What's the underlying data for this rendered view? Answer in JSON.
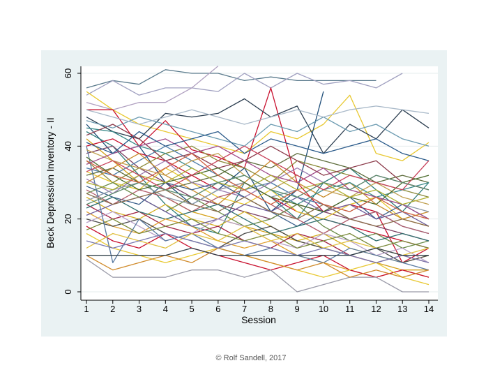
{
  "chart_data": {
    "type": "line",
    "xlabel": "Session",
    "ylabel": "Beck Depression Inventory - II",
    "xlim": [
      1,
      14
    ],
    "ylim": [
      0,
      60
    ],
    "x_ticks": [
      1,
      2,
      3,
      4,
      5,
      6,
      7,
      8,
      9,
      10,
      11,
      12,
      13,
      14
    ],
    "y_ticks": [
      0,
      20,
      40,
      60
    ],
    "grid": "horizontal",
    "legend": "none",
    "series": [
      {
        "color": "#5a7a8c",
        "values": [
          56,
          58,
          57,
          61,
          60,
          60,
          58,
          59,
          58,
          58,
          58,
          58,
          null,
          null
        ]
      },
      {
        "color": "#a0a0c0",
        "values": [
          54,
          58,
          54,
          56,
          56,
          55,
          60,
          56,
          60,
          57,
          58,
          56,
          60,
          null
        ]
      },
      {
        "color": "#b0a0c0",
        "values": [
          52,
          50,
          52,
          52,
          56,
          62,
          null,
          null,
          null,
          null,
          null,
          null,
          null,
          null
        ]
      },
      {
        "color": "#e8c830",
        "values": [
          55,
          50,
          46,
          44,
          42,
          40,
          38,
          44,
          42,
          46,
          54,
          38,
          36,
          41
        ]
      },
      {
        "color": "#c8102e",
        "values": [
          50,
          50,
          40,
          47,
          39,
          37,
          34,
          56,
          30,
          22,
          24,
          22,
          8,
          12
        ]
      },
      {
        "color": "#2c3e50",
        "values": [
          48,
          44,
          42,
          49,
          48,
          49,
          53,
          48,
          51,
          38,
          46,
          42,
          50,
          45
        ]
      },
      {
        "color": "#1f4e79",
        "values": [
          46,
          38,
          40,
          30,
          24,
          28,
          34,
          22,
          28,
          55,
          null,
          null,
          null,
          null
        ]
      },
      {
        "color": "#2e7d7a",
        "values": [
          44,
          40,
          32,
          24,
          18,
          16,
          30,
          26,
          20,
          30,
          34,
          28,
          22,
          30
        ]
      },
      {
        "color": "#d4a017",
        "values": [
          42,
          36,
          30,
          26,
          22,
          20,
          18,
          16,
          14,
          12,
          10,
          8,
          6,
          6
        ]
      },
      {
        "color": "#c8102e",
        "values": [
          40,
          42,
          38,
          36,
          32,
          28,
          30,
          26,
          22,
          20,
          18,
          16,
          14,
          12
        ]
      },
      {
        "color": "#7b3f61",
        "values": [
          38,
          40,
          34,
          30,
          26,
          24,
          22,
          20,
          24,
          22,
          20,
          18,
          16,
          14
        ]
      },
      {
        "color": "#8b8b3a",
        "values": [
          36,
          30,
          34,
          38,
          40,
          36,
          34,
          30,
          36,
          34,
          32,
          30,
          28,
          26
        ]
      },
      {
        "color": "#4a7aa8",
        "values": [
          34,
          32,
          36,
          40,
          36,
          32,
          28,
          30,
          26,
          24,
          20,
          22,
          18,
          16
        ]
      },
      {
        "color": "#e8c830",
        "values": [
          33,
          30,
          28,
          34,
          30,
          26,
          24,
          28,
          22,
          20,
          24,
          26,
          20,
          18
        ]
      },
      {
        "color": "#5c6b3a",
        "values": [
          32,
          34,
          30,
          28,
          30,
          32,
          36,
          34,
          38,
          36,
          34,
          30,
          32,
          30
        ]
      },
      {
        "color": "#9b7bb0",
        "values": [
          31,
          27,
          32,
          36,
          30,
          28,
          26,
          30,
          34,
          30,
          28,
          32,
          30,
          28
        ]
      },
      {
        "color": "#c98b2a",
        "values": [
          30,
          34,
          38,
          32,
          28,
          24,
          30,
          36,
          30,
          26,
          30,
          24,
          20,
          22
        ]
      },
      {
        "color": "#3a5f8c",
        "values": [
          29,
          26,
          24,
          30,
          28,
          30,
          26,
          22,
          18,
          22,
          26,
          20,
          24,
          20
        ]
      },
      {
        "color": "#b05a6a",
        "values": [
          28,
          24,
          28,
          26,
          22,
          26,
          28,
          24,
          20,
          16,
          20,
          22,
          18,
          16
        ]
      },
      {
        "color": "#6a8c4a",
        "values": [
          27,
          30,
          26,
          22,
          26,
          22,
          18,
          20,
          24,
          18,
          14,
          16,
          12,
          14
        ]
      },
      {
        "color": "#d4b020",
        "values": [
          26,
          22,
          20,
          24,
          20,
          18,
          22,
          18,
          14,
          16,
          12,
          10,
          8,
          10
        ]
      },
      {
        "color": "#8a9aa8",
        "values": [
          25,
          28,
          30,
          26,
          24,
          28,
          30,
          26,
          28,
          24,
          22,
          26,
          24,
          22
        ]
      },
      {
        "color": "#a02040",
        "values": [
          24,
          20,
          22,
          18,
          16,
          18,
          14,
          12,
          16,
          14,
          10,
          8,
          10,
          8
        ]
      },
      {
        "color": "#2e6e6e",
        "values": [
          23,
          26,
          22,
          20,
          22,
          24,
          20,
          16,
          18,
          20,
          18,
          14,
          16,
          14
        ]
      },
      {
        "color": "#e0a030",
        "values": [
          22,
          18,
          16,
          20,
          18,
          14,
          12,
          14,
          10,
          8,
          6,
          4,
          6,
          4
        ]
      },
      {
        "color": "#6a5a9a",
        "values": [
          21,
          24,
          26,
          22,
          18,
          20,
          24,
          22,
          26,
          22,
          24,
          20,
          22,
          18
        ]
      },
      {
        "color": "#4a4a4a",
        "values": [
          20,
          18,
          20,
          16,
          14,
          12,
          16,
          18,
          14,
          12,
          10,
          12,
          8,
          10
        ]
      },
      {
        "color": "#b8a0c8",
        "values": [
          19,
          22,
          18,
          14,
          16,
          20,
          18,
          14,
          12,
          16,
          14,
          10,
          12,
          8
        ]
      },
      {
        "color": "#c8102e",
        "values": [
          18,
          14,
          12,
          16,
          12,
          10,
          8,
          6,
          8,
          10,
          6,
          4,
          6,
          4
        ]
      },
      {
        "color": "#7a8a3a",
        "values": [
          17,
          20,
          16,
          18,
          20,
          16,
          14,
          16,
          12,
          14,
          16,
          12,
          14,
          12
        ]
      },
      {
        "color": "#e8c830",
        "values": [
          16,
          12,
          10,
          8,
          10,
          12,
          10,
          8,
          6,
          4,
          6,
          8,
          4,
          2
        ]
      },
      {
        "color": "#5a7aa0",
        "values": [
          40,
          8,
          20,
          14,
          16,
          12,
          10,
          12,
          10,
          8,
          12,
          10,
          8,
          6
        ]
      },
      {
        "color": "#9a9aa8",
        "values": [
          9,
          4,
          4,
          4,
          6,
          6,
          4,
          6,
          0,
          2,
          4,
          4,
          0,
          0
        ]
      },
      {
        "color": "#d08a2a",
        "values": [
          10,
          6,
          8,
          10,
          8,
          12,
          10,
          8,
          6,
          8,
          4,
          6,
          4,
          6
        ]
      },
      {
        "color": "#3a8a8a",
        "values": [
          45,
          44,
          40,
          38,
          34,
          30,
          32,
          28,
          24,
          28,
          30,
          26,
          28,
          30
        ]
      },
      {
        "color": "#8b3a4a",
        "values": [
          43,
          46,
          42,
          36,
          38,
          34,
          36,
          40,
          36,
          32,
          34,
          36,
          30,
          28
        ]
      },
      {
        "color": "#6a9ab0",
        "values": [
          47,
          45,
          48,
          46,
          44,
          42,
          40,
          46,
          44,
          48,
          44,
          46,
          42,
          40
        ]
      },
      {
        "color": "#c0a050",
        "values": [
          39,
          36,
          34,
          32,
          36,
          38,
          32,
          28,
          32,
          28,
          26,
          30,
          26,
          24
        ]
      },
      {
        "color": "#4a6a2a",
        "values": [
          37,
          32,
          28,
          30,
          32,
          34,
          30,
          26,
          24,
          22,
          26,
          24,
          30,
          32
        ]
      },
      {
        "color": "#a04a8a",
        "values": [
          35,
          38,
          40,
          42,
          38,
          40,
          36,
          32,
          30,
          34,
          28,
          26,
          24,
          20
        ]
      },
      {
        "color": "#2a5a8a",
        "values": [
          41,
          38,
          44,
          40,
          42,
          44,
          38,
          42,
          40,
          38,
          40,
          42,
          38,
          36
        ]
      },
      {
        "color": "#b0b030",
        "values": [
          30,
          28,
          32,
          30,
          34,
          30,
          28,
          32,
          28,
          30,
          26,
          28,
          24,
          26
        ]
      },
      {
        "color": "#8a6a4a",
        "values": [
          27,
          24,
          26,
          28,
          24,
          22,
          26,
          22,
          20,
          24,
          20,
          18,
          20,
          18
        ]
      },
      {
        "color": "#c8405a",
        "values": [
          33,
          36,
          32,
          28,
          32,
          36,
          40,
          36,
          32,
          28,
          32,
          30,
          28,
          36
        ]
      },
      {
        "color": "#5a8a6a",
        "values": [
          24,
          27,
          30,
          28,
          26,
          30,
          32,
          28,
          26,
          30,
          28,
          32,
          30,
          28
        ]
      },
      {
        "color": "#e0c040",
        "values": [
          12,
          16,
          14,
          12,
          16,
          14,
          18,
          14,
          16,
          12,
          14,
          12,
          10,
          12
        ]
      },
      {
        "color": "#7a7ab0",
        "values": [
          14,
          12,
          14,
          16,
          14,
          12,
          14,
          12,
          10,
          12,
          10,
          8,
          10,
          8
        ]
      },
      {
        "color": "#30404a",
        "values": [
          10,
          10,
          10,
          10,
          12,
          10,
          10,
          10,
          10,
          10,
          10,
          12,
          10,
          10
        ]
      },
      {
        "color": "#a8b8c8",
        "values": [
          50,
          48,
          46,
          48,
          50,
          48,
          46,
          48,
          50,
          48,
          50,
          51,
          50,
          49
        ]
      },
      {
        "color": "#d06040",
        "values": [
          36,
          32,
          30,
          34,
          38,
          32,
          28,
          24,
          28,
          24,
          22,
          26,
          22,
          20
        ]
      }
    ]
  },
  "copyright": "© Rolf Sandell, 2017"
}
